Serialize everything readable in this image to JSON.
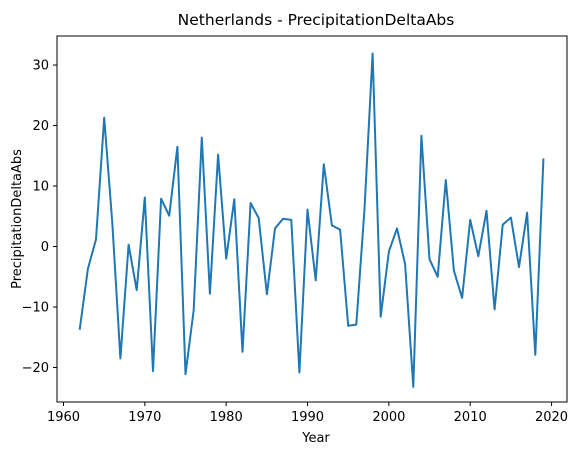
{
  "chart_data": {
    "type": "line",
    "title": "Netherlands - PrecipitationDeltaAbs",
    "xlabel": "Year",
    "ylabel": "PrecipitationDeltaAbs",
    "xlim": [
      1959.2,
      2021.9
    ],
    "ylim": [
      -25.7,
      34.8
    ],
    "xticks": [
      1960,
      1970,
      1980,
      1990,
      2000,
      2010,
      2020
    ],
    "yticks": [
      -20,
      -10,
      0,
      10,
      20,
      30
    ],
    "grid": false,
    "line_color": "#1f77b4",
    "x": [
      1962,
      1963,
      1964,
      1965,
      1966,
      1967,
      1968,
      1969,
      1970,
      1971,
      1972,
      1973,
      1974,
      1975,
      1976,
      1977,
      1978,
      1979,
      1980,
      1981,
      1982,
      1983,
      1984,
      1985,
      1986,
      1987,
      1988,
      1989,
      1990,
      1991,
      1992,
      1993,
      1994,
      1995,
      1996,
      1997,
      1998,
      1999,
      2000,
      2001,
      2002,
      2003,
      2004,
      2005,
      2006,
      2007,
      2008,
      2009,
      2010,
      2011,
      2012,
      2013,
      2014,
      2015,
      2016,
      2017,
      2018,
      2019
    ],
    "series": [
      {
        "values": [
          -13.6,
          -3.7,
          1.2,
          21.3,
          3.9,
          -18.5,
          0.3,
          -7.2,
          8.1,
          -20.6,
          7.9,
          5.1,
          16.5,
          -21.1,
          -10.5,
          18.0,
          -7.8,
          15.2,
          -2.0,
          7.8,
          -17.4,
          7.2,
          4.7,
          -7.9,
          3.0,
          4.6,
          4.4,
          -20.8,
          6.1,
          -5.6,
          13.6,
          3.5,
          2.8,
          -13.1,
          -12.9,
          6.2,
          31.9,
          -11.6,
          -0.8,
          3.0,
          -2.9,
          -23.2,
          18.3,
          -2.1,
          -5.0,
          11.0,
          -4.0,
          -8.5,
          4.4,
          -1.6,
          5.9,
          -10.4,
          3.6,
          4.8,
          -3.4,
          5.6,
          -17.9,
          14.4
        ]
      }
    ]
  }
}
